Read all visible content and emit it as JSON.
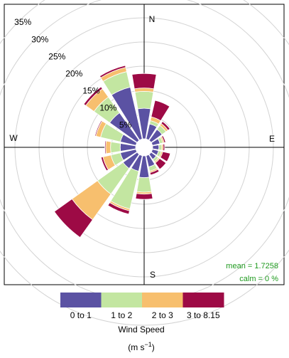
{
  "chart_data": {
    "type": "windrose",
    "directions": [
      "N",
      "NNE",
      "NE",
      "ENE",
      "E",
      "ESE",
      "SE",
      "SSE",
      "S",
      "SSW",
      "SW",
      "WSW",
      "W",
      "WNW",
      "NW",
      "NNW"
    ],
    "angles_deg": [
      0,
      22.5,
      45,
      67.5,
      90,
      112.5,
      135,
      157.5,
      180,
      202.5,
      225,
      247.5,
      270,
      292.5,
      315,
      337.5
    ],
    "radial_unit": "%",
    "radial_ticks": [
      "5%",
      "10%",
      "15%",
      "20%",
      "25%",
      "30%",
      "35%"
    ],
    "radial_tick_values": [
      5,
      10,
      15,
      20,
      25,
      30,
      35
    ],
    "rmax": 35,
    "compass_labels": {
      "N": "N",
      "E": "E",
      "S": "S",
      "W": "W"
    },
    "series": [
      {
        "name": "0 to 1",
        "color": "#5b52a3",
        "values": [
          6.3,
          3.2,
          2.8,
          1.6,
          1.3,
          1.3,
          1.3,
          2.4,
          4.5,
          3.3,
          3.6,
          3.3,
          3.2,
          3.3,
          7.0,
          11.0
        ]
      },
      {
        "name": "1 to 2",
        "color": "#c3e6a1",
        "values": [
          3.5,
          0.7,
          1.0,
          0.6,
          0.6,
          0.6,
          0.6,
          0.9,
          3.0,
          8.0,
          6.5,
          2.0,
          2.0,
          4.2,
          4.0,
          3.3
        ]
      },
      {
        "name": "2 to 3",
        "color": "#f7bf6e",
        "values": [
          0.7,
          0.8,
          0.5,
          0.3,
          0.3,
          0.3,
          0.3,
          0.3,
          0.4,
          0.4,
          6.5,
          1.7,
          1.0,
          1.0,
          2.1,
          0.9
        ]
      },
      {
        "name": "3 to 8.15",
        "color": "#9d0a45",
        "values": [
          3.0,
          3.5,
          0.5,
          0.3,
          0.3,
          1.6,
          1.6,
          0.5,
          1.1,
          0.7,
          4.5,
          0.4,
          0.2,
          0.2,
          0.5,
          0.4
        ]
      }
    ],
    "legend": {
      "title": "Wind Speed",
      "unit_base": "(m s",
      "unit_sup": "−1",
      "unit_close": ")",
      "placement": "bottom"
    },
    "annotations": {
      "mean": "mean = 1.7258",
      "calm": "calm = 0 %",
      "color": "#1e9a1e"
    },
    "grid": true
  }
}
